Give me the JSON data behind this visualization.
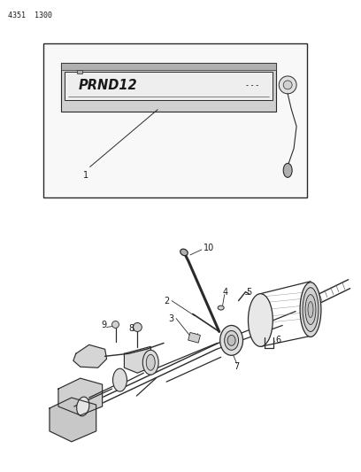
{
  "background_color": "#ffffff",
  "header_text": "4351  1300",
  "fig_width": 4.08,
  "fig_height": 5.33,
  "line_color": "#2a2a2a",
  "text_color": "#1a1a1a",
  "light_gray": "#d0d0d0",
  "mid_gray": "#b0b0b0",
  "dark_gray": "#888888"
}
